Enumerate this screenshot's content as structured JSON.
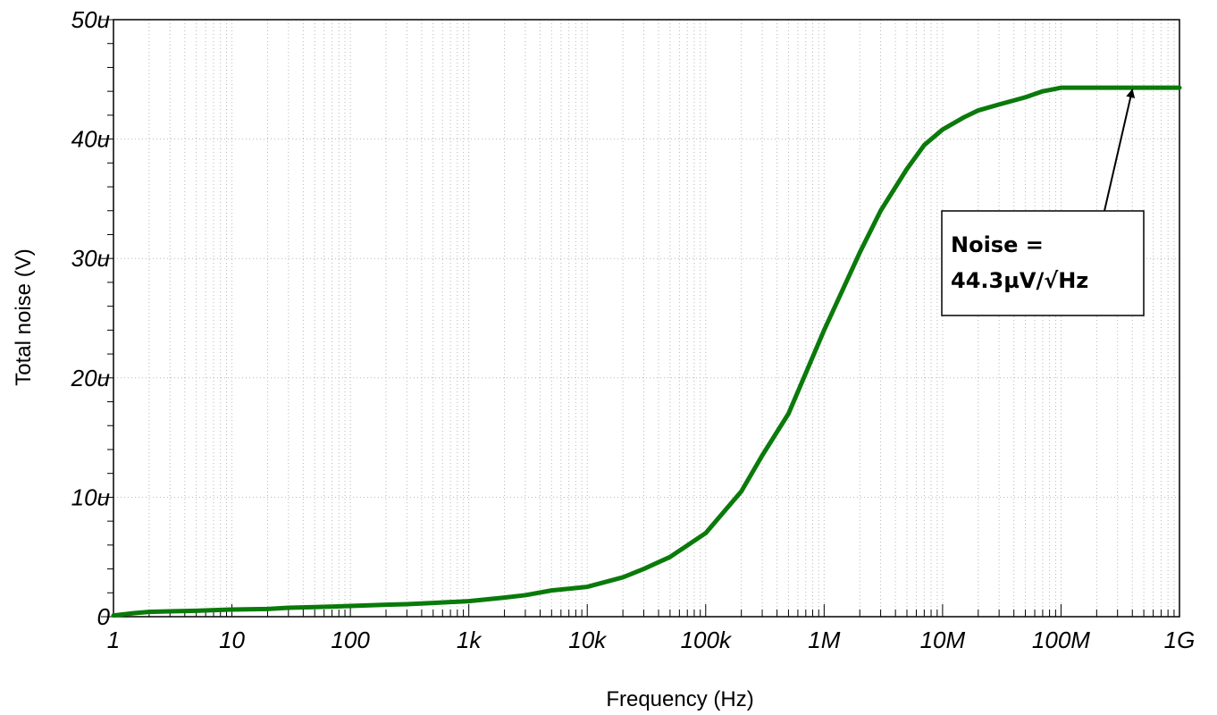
{
  "chart_data": {
    "type": "line",
    "title": "",
    "xlabel": "Frequency (Hz)",
    "ylabel": "Total noise (V)",
    "x_scale": "log",
    "xlim": [
      1,
      1000000000
    ],
    "ylim": [
      0,
      50
    ],
    "grid": true,
    "x_ticks": [
      {
        "value": 1,
        "label": "1"
      },
      {
        "value": 10,
        "label": "10"
      },
      {
        "value": 100,
        "label": "100"
      },
      {
        "value": 1000,
        "label": "1k"
      },
      {
        "value": 10000,
        "label": "10k"
      },
      {
        "value": 100000,
        "label": "100k"
      },
      {
        "value": 1000000,
        "label": "1M"
      },
      {
        "value": 10000000,
        "label": "10M"
      },
      {
        "value": 100000000,
        "label": "100M"
      },
      {
        "value": 1000000000,
        "label": "1G"
      }
    ],
    "y_ticks": [
      {
        "value": 0,
        "label": "0"
      },
      {
        "value": 10,
        "label": "10u"
      },
      {
        "value": 20,
        "label": "20u"
      },
      {
        "value": 30,
        "label": "30u"
      },
      {
        "value": 40,
        "label": "40u"
      },
      {
        "value": 50,
        "label": "50u"
      }
    ],
    "series": [
      {
        "color": "#0a7a0a",
        "x": [
          1,
          1.5,
          2,
          3,
          5,
          10,
          20,
          30,
          50,
          100,
          200,
          300,
          500,
          1000,
          2000,
          3000,
          5000,
          10000,
          20000,
          30000,
          50000,
          100000,
          200000,
          300000,
          500000,
          1000000,
          2000000,
          3000000,
          5000000,
          7000000,
          10000000,
          15000000,
          20000000,
          30000000,
          50000000,
          70000000,
          100000000,
          200000000,
          400000000,
          1000000000
        ],
        "y": [
          0.1,
          0.3,
          0.4,
          0.45,
          0.5,
          0.6,
          0.65,
          0.75,
          0.8,
          0.9,
          1.0,
          1.05,
          1.15,
          1.3,
          1.6,
          1.8,
          2.2,
          2.5,
          3.3,
          4.0,
          5.0,
          7.0,
          10.5,
          13.5,
          17.0,
          24.0,
          30.5,
          34.0,
          37.5,
          39.5,
          40.8,
          41.8,
          42.4,
          42.9,
          43.5,
          44.0,
          44.3,
          44.3,
          44.3,
          44.3
        ]
      }
    ],
    "annotation": {
      "text_line1": "Noise =",
      "text_line2": "44.3µV/√Hz",
      "target_x": 400000000,
      "target_y": 44.3
    }
  }
}
